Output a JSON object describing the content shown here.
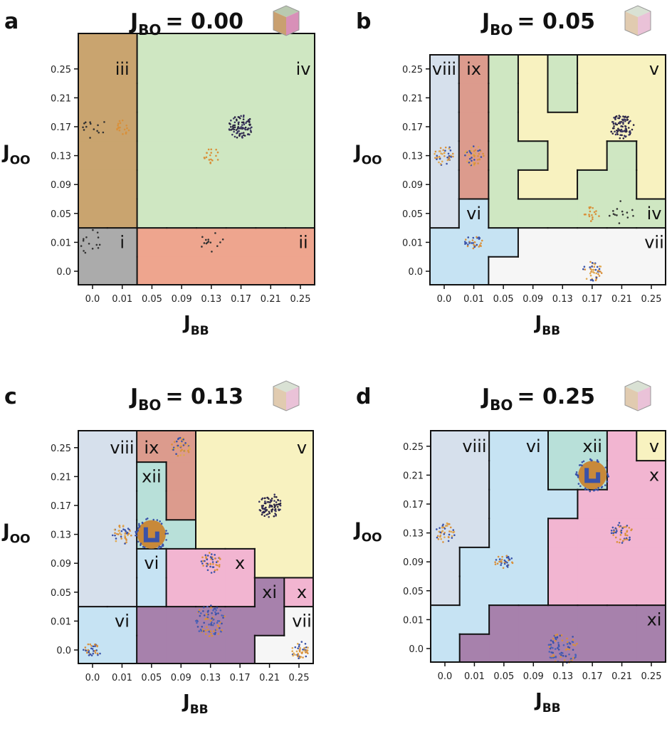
{
  "figure": {
    "panels": [
      {
        "letter": "a",
        "title": {
          "symbol": "J",
          "subscript": "BO",
          "value_text": "= 0.00"
        }
      },
      {
        "letter": "b",
        "title": {
          "symbol": "J",
          "subscript": "BO",
          "value_text": "= 0.05"
        }
      },
      {
        "letter": "c",
        "title": {
          "symbol": "J",
          "subscript": "BO",
          "value_text": "= 0.13"
        }
      },
      {
        "letter": "d",
        "title": {
          "symbol": "J",
          "subscript": "BO",
          "value_text": "= 0.25"
        }
      }
    ],
    "xlabel": {
      "symbol": "J",
      "subscript": "BB"
    },
    "ylabel": {
      "symbol": "J",
      "subscript": "OO"
    }
  },
  "phase_colors": {
    "i": "#ababab",
    "ii": "#eea58e",
    "iii": "#c9a46f",
    "iv": "#cfe7c2",
    "v": "#f8f2c0",
    "vi": "#c6e3f3",
    "vii": "#f6f6f6",
    "viii": "#d6e0ec",
    "ix": "#dc9b8d",
    "x": "#f2b5d1",
    "xi": "#a781ac",
    "xii": "#b8e0d9"
  },
  "chart_data": [
    {
      "type": "heatmap",
      "title": "J_BO = 0.00",
      "xlabel": "J_BB",
      "ylabel": "J_OO",
      "x": [
        "0.0",
        "0.01",
        "0.05",
        "0.09",
        "0.13",
        "0.17",
        "0.21",
        "0.25"
      ],
      "y": [
        "0.25",
        "0.21",
        "0.17",
        "0.13",
        "0.09",
        "0.05",
        "0.01",
        "0.0"
      ],
      "grid": [
        [
          "iii",
          "iii",
          "iv",
          "iv",
          "iv",
          "iv",
          "iv",
          "iv"
        ],
        [
          "iii",
          "iii",
          "iv",
          "iv",
          "iv",
          "iv",
          "iv",
          "iv"
        ],
        [
          "iii",
          "iii",
          "iv",
          "iv",
          "iv",
          "iv",
          "iv",
          "iv"
        ],
        [
          "iii",
          "iii",
          "iv",
          "iv",
          "iv",
          "iv",
          "iv",
          "iv"
        ],
        [
          "iii",
          "iii",
          "iv",
          "iv",
          "iv",
          "iv",
          "iv",
          "iv"
        ],
        [
          "iii",
          "iii",
          "iv",
          "iv",
          "iv",
          "iv",
          "iv",
          "iv"
        ],
        [
          "i",
          "i",
          "ii",
          "ii",
          "ii",
          "ii",
          "ii",
          "ii"
        ],
        [
          "i",
          "i",
          "ii",
          "ii",
          "ii",
          "ii",
          "ii",
          "ii"
        ]
      ],
      "labels": [
        {
          "text": "iii",
          "x": "0.01",
          "y": "0.25"
        },
        {
          "text": "iv",
          "x": "0.25",
          "y": "0.25"
        },
        {
          "text": "i",
          "x": "0.01",
          "y": "0.01"
        },
        {
          "text": "ii",
          "x": "0.25",
          "y": "0.01"
        }
      ],
      "snapshots": [
        {
          "x": "0.0",
          "y": "0.17",
          "style": "sparse-dark"
        },
        {
          "x": "0.01",
          "y": "0.17",
          "style": "sparse-orange"
        },
        {
          "x": "0.13",
          "y": "0.13",
          "style": "orange-cluster"
        },
        {
          "x": "0.17",
          "y": "0.17",
          "style": "dark-cluster"
        },
        {
          "x": "0.0",
          "y": "0.01",
          "style": "sparse-dark"
        },
        {
          "x": "0.13",
          "y": "0.01",
          "style": "sparse-dark"
        }
      ]
    },
    {
      "type": "heatmap",
      "title": "J_BO = 0.05",
      "xlabel": "J_BB",
      "ylabel": "J_OO",
      "x": [
        "0.0",
        "0.01",
        "0.05",
        "0.09",
        "0.13",
        "0.17",
        "0.21",
        "0.25"
      ],
      "y": [
        "0.25",
        "0.21",
        "0.17",
        "0.13",
        "0.09",
        "0.05",
        "0.01",
        "0.0"
      ],
      "grid": [
        [
          "viii",
          "ix",
          "iv",
          "v",
          "iv",
          "v",
          "v",
          "v"
        ],
        [
          "viii",
          "ix",
          "iv",
          "v",
          "iv",
          "v",
          "v",
          "v"
        ],
        [
          "viii",
          "ix",
          "iv",
          "v",
          "v",
          "v",
          "v",
          "v"
        ],
        [
          "viii",
          "ix",
          "iv",
          "iv",
          "v",
          "v",
          "iv",
          "v"
        ],
        [
          "viii",
          "ix",
          "iv",
          "v",
          "v",
          "iv",
          "iv",
          "v"
        ],
        [
          "viii",
          "vi",
          "iv",
          "iv",
          "iv",
          "iv",
          "iv",
          "iv"
        ],
        [
          "vi",
          "vi",
          "vi",
          "vii",
          "vii",
          "vii",
          "vii",
          "vii"
        ],
        [
          "vi",
          "vi",
          "vii",
          "vii",
          "vii",
          "vii",
          "vii",
          "vii"
        ]
      ],
      "labels": [
        {
          "text": "viii",
          "x": "0.0",
          "y": "0.25"
        },
        {
          "text": "ix",
          "x": "0.01",
          "y": "0.25"
        },
        {
          "text": "v",
          "x": "0.25",
          "y": "0.25"
        },
        {
          "text": "vi",
          "x": "0.01",
          "y": "0.05"
        },
        {
          "text": "iv",
          "x": "0.25",
          "y": "0.05"
        },
        {
          "text": "vii",
          "x": "0.25",
          "y": "0.01"
        }
      ],
      "snapshots": [
        {
          "x": "0.0",
          "y": "0.13",
          "style": "mixed"
        },
        {
          "x": "0.01",
          "y": "0.13",
          "style": "mixed-orange"
        },
        {
          "x": "0.21",
          "y": "0.17",
          "style": "dark-cluster"
        },
        {
          "x": "0.21",
          "y": "0.05",
          "style": "sparse-dark"
        },
        {
          "x": "0.17",
          "y": "0.05",
          "style": "sparse-orange"
        },
        {
          "x": "0.01",
          "y": "0.01",
          "style": "layered"
        },
        {
          "x": "0.17",
          "y": "0.0",
          "style": "mixed"
        }
      ]
    },
    {
      "type": "heatmap",
      "title": "J_BO = 0.13",
      "xlabel": "J_BB",
      "ylabel": "J_OO",
      "x": [
        "0.0",
        "0.01",
        "0.05",
        "0.09",
        "0.13",
        "0.17",
        "0.21",
        "0.25"
      ],
      "y": [
        "0.25",
        "0.21",
        "0.17",
        "0.13",
        "0.09",
        "0.05",
        "0.01",
        "0.0"
      ],
      "grid": [
        [
          "viii",
          "viii",
          "ix",
          "ix",
          "v",
          "v",
          "v",
          "v"
        ],
        [
          "viii",
          "viii",
          "xii",
          "ix",
          "v",
          "v",
          "v",
          "v"
        ],
        [
          "viii",
          "viii",
          "xii",
          "ix",
          "v",
          "v",
          "v",
          "v"
        ],
        [
          "viii",
          "viii",
          "xii",
          "xii",
          "v",
          "v",
          "v",
          "v"
        ],
        [
          "viii",
          "viii",
          "vi",
          "x",
          "x",
          "x",
          "v",
          "v"
        ],
        [
          "viii",
          "viii",
          "vi",
          "x",
          "x",
          "x",
          "xi",
          "x"
        ],
        [
          "vi",
          "vi",
          "xi",
          "xi",
          "xi",
          "xi",
          "xi",
          "vii"
        ],
        [
          "vi",
          "vi",
          "xi",
          "xi",
          "xi",
          "xi",
          "vii",
          "vii"
        ]
      ],
      "labels": [
        {
          "text": "viii",
          "x": "0.01",
          "y": "0.25"
        },
        {
          "text": "ix",
          "x": "0.05",
          "y": "0.25"
        },
        {
          "text": "v",
          "x": "0.25",
          "y": "0.25"
        },
        {
          "text": "xii",
          "x": "0.05",
          "y": "0.21"
        },
        {
          "text": "vi",
          "x": "0.05",
          "y": "0.09"
        },
        {
          "text": "x",
          "x": "0.17",
          "y": "0.09"
        },
        {
          "text": "xi",
          "x": "0.21",
          "y": "0.05"
        },
        {
          "text": "x",
          "x": "0.25",
          "y": "0.05"
        },
        {
          "text": "vi",
          "x": "0.01",
          "y": "0.01"
        },
        {
          "text": "vii",
          "x": "0.25",
          "y": "0.01"
        }
      ],
      "snapshots": [
        {
          "x": "0.01",
          "y": "0.13",
          "style": "mixed"
        },
        {
          "x": "0.09",
          "y": "0.25",
          "style": "mixed-orange"
        },
        {
          "x": "0.21",
          "y": "0.17",
          "style": "dark-cluster"
        },
        {
          "x": "0.05",
          "y": "0.13",
          "style": "big-spiral"
        },
        {
          "x": "0.13",
          "y": "0.09",
          "style": "micelle"
        },
        {
          "x": "0.13",
          "y": "0.01",
          "style": "aggregate"
        },
        {
          "x": "0.0",
          "y": "0.0",
          "style": "layered"
        },
        {
          "x": "0.25",
          "y": "0.0",
          "style": "mixed"
        }
      ]
    },
    {
      "type": "heatmap",
      "title": "J_BO = 0.25",
      "xlabel": "J_BB",
      "ylabel": "J_OO",
      "x": [
        "0.0",
        "0.01",
        "0.05",
        "0.09",
        "0.13",
        "0.17",
        "0.21",
        "0.25"
      ],
      "y": [
        "0.25",
        "0.21",
        "0.17",
        "0.13",
        "0.09",
        "0.05",
        "0.01",
        "0.0"
      ],
      "grid": [
        [
          "viii",
          "viii",
          "vi",
          "vi",
          "xii",
          "xii",
          "x",
          "v"
        ],
        [
          "viii",
          "viii",
          "vi",
          "vi",
          "xii",
          "xii",
          "x",
          "x"
        ],
        [
          "viii",
          "viii",
          "vi",
          "vi",
          "vi",
          "x",
          "x",
          "x"
        ],
        [
          "viii",
          "viii",
          "vi",
          "vi",
          "x",
          "x",
          "x",
          "x"
        ],
        [
          "viii",
          "vi",
          "vi",
          "vi",
          "x",
          "x",
          "x",
          "x"
        ],
        [
          "viii",
          "vi",
          "vi",
          "vi",
          "x",
          "x",
          "x",
          "x"
        ],
        [
          "vi",
          "vi",
          "xi",
          "xi",
          "xi",
          "xi",
          "xi",
          "xi"
        ],
        [
          "vi",
          "xi",
          "xi",
          "xi",
          "xi",
          "xi",
          "xi",
          "xi"
        ]
      ],
      "labels": [
        {
          "text": "viii",
          "x": "0.01",
          "y": "0.25"
        },
        {
          "text": "vi",
          "x": "0.09",
          "y": "0.25"
        },
        {
          "text": "xii",
          "x": "0.17",
          "y": "0.25"
        },
        {
          "text": "v",
          "x": "0.25",
          "y": "0.25"
        },
        {
          "text": "x",
          "x": "0.25",
          "y": "0.21"
        },
        {
          "text": "xi",
          "x": "0.25",
          "y": "0.01"
        }
      ],
      "snapshots": [
        {
          "x": "0.0",
          "y": "0.13",
          "style": "mixed"
        },
        {
          "x": "0.05",
          "y": "0.09",
          "style": "layered"
        },
        {
          "x": "0.17",
          "y": "0.21",
          "style": "big-spiral"
        },
        {
          "x": "0.21",
          "y": "0.13",
          "style": "micelle"
        },
        {
          "x": "0.13",
          "y": "0.0",
          "style": "aggregate"
        }
      ]
    }
  ]
}
